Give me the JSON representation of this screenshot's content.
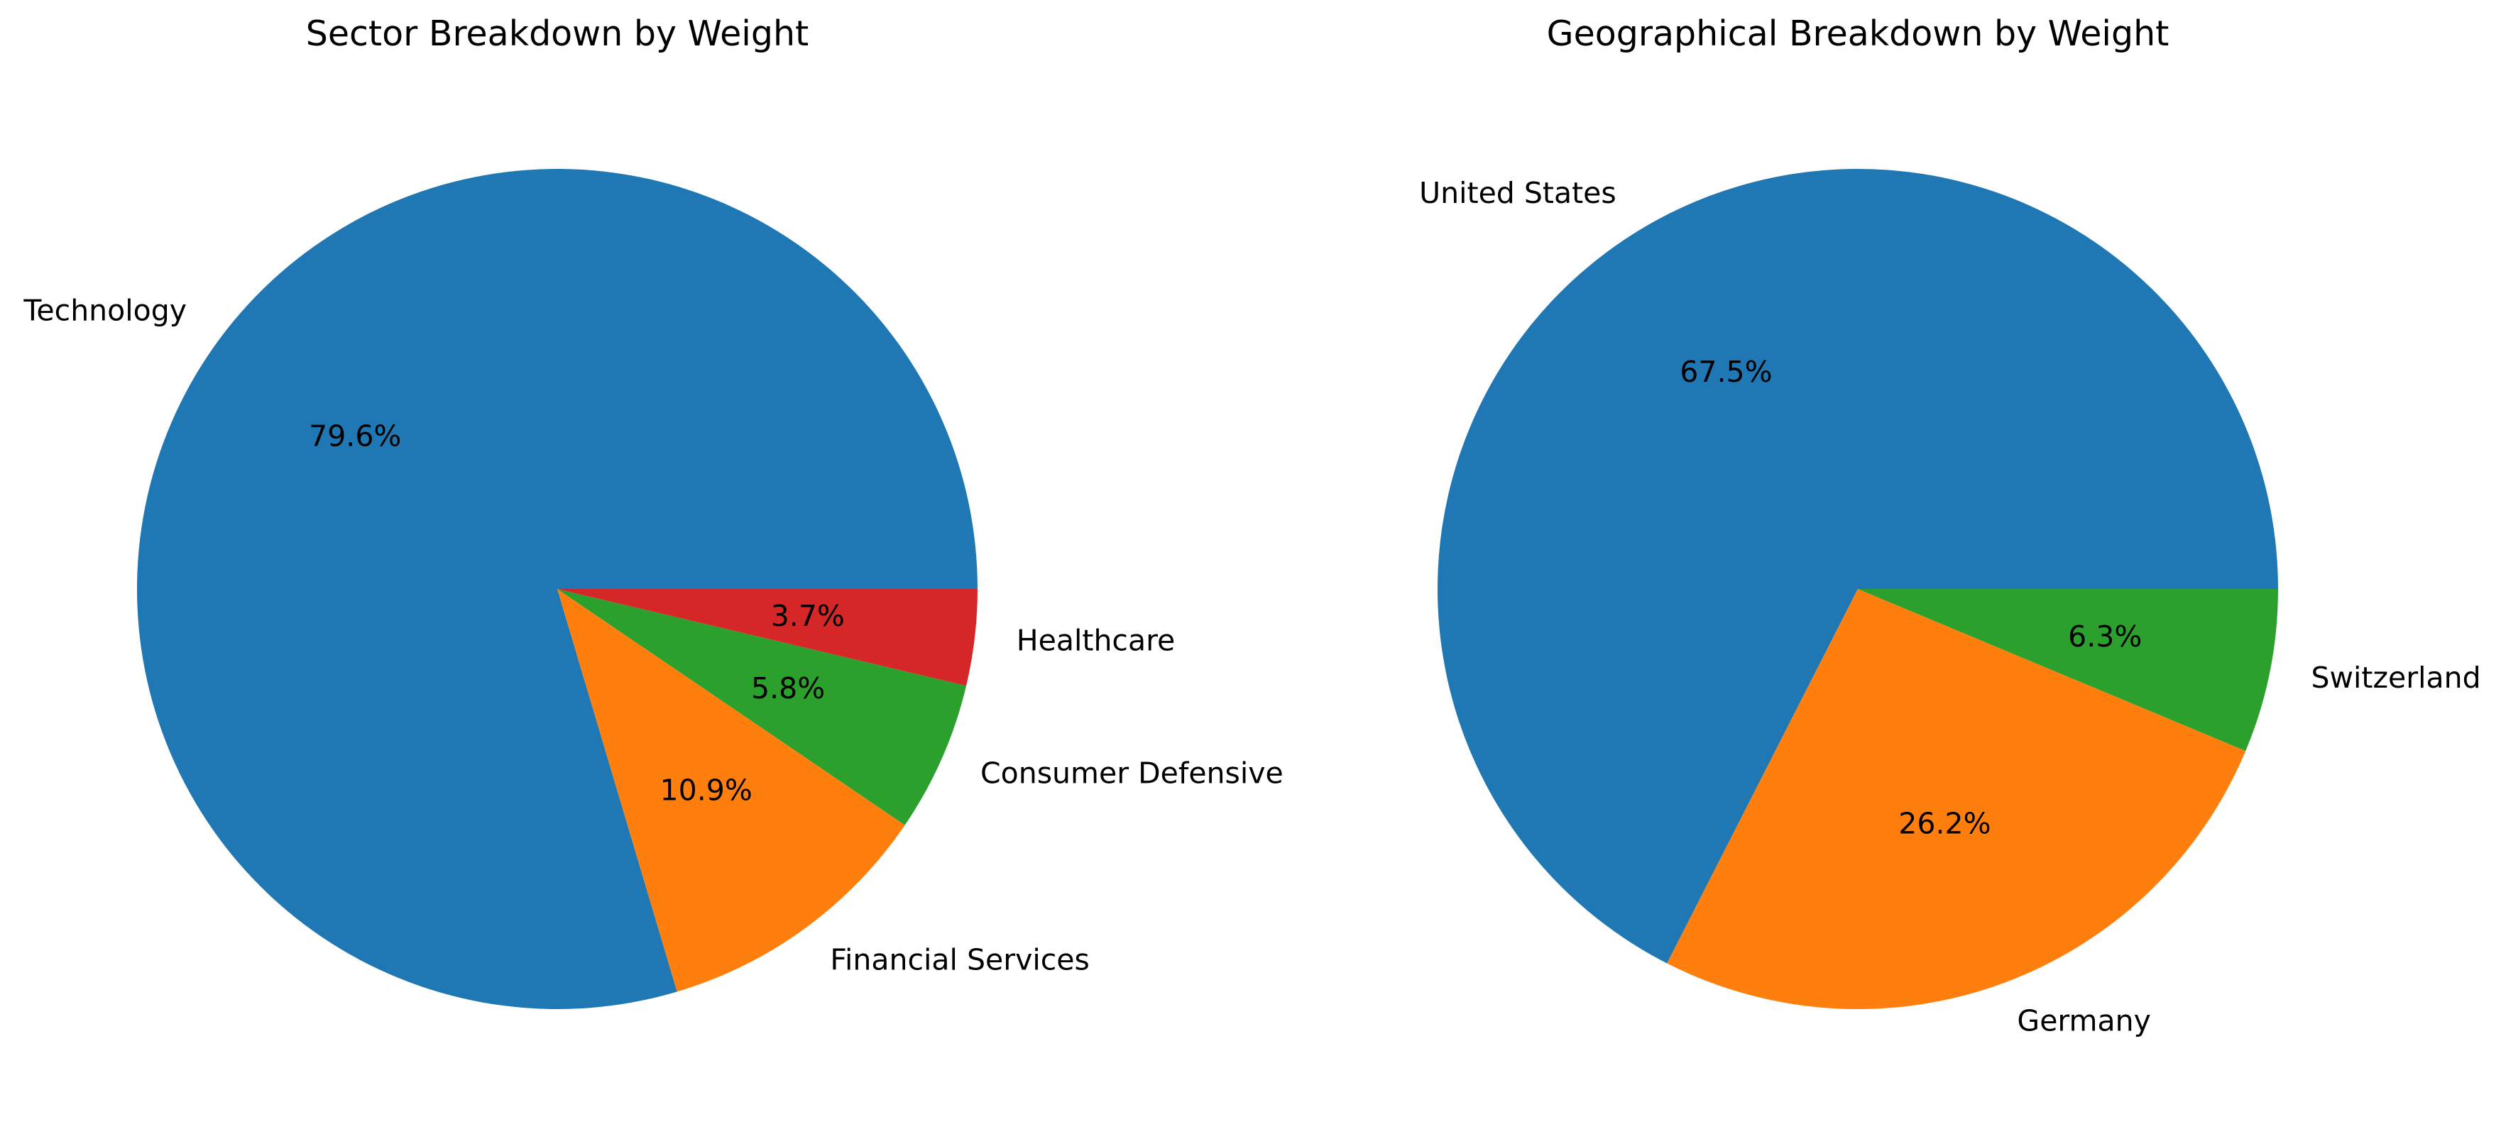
{
  "chart_data": [
    {
      "type": "pie",
      "title": "Sector Breakdown by Weight",
      "start_angle_deg": 0,
      "direction": "counterclockwise",
      "categories": [
        "Technology",
        "Financial Services",
        "Consumer Defensive",
        "Healthcare"
      ],
      "values": [
        79.6,
        10.9,
        5.8,
        3.7
      ],
      "value_labels": [
        "79.6%",
        "10.9%",
        "5.8%",
        "3.7%"
      ],
      "colors": [
        "#1f77b4",
        "#ff7f0e",
        "#2ca02c",
        "#d62728"
      ]
    },
    {
      "type": "pie",
      "title": "Geographical Breakdown by Weight",
      "start_angle_deg": 0,
      "direction": "counterclockwise",
      "categories": [
        "United States",
        "Germany",
        "Switzerland"
      ],
      "values": [
        67.5,
        26.2,
        6.3
      ],
      "value_labels": [
        "67.5%",
        "26.2%",
        "6.3%"
      ],
      "colors": [
        "#1f77b4",
        "#ff7f0e",
        "#2ca02c"
      ]
    }
  ]
}
